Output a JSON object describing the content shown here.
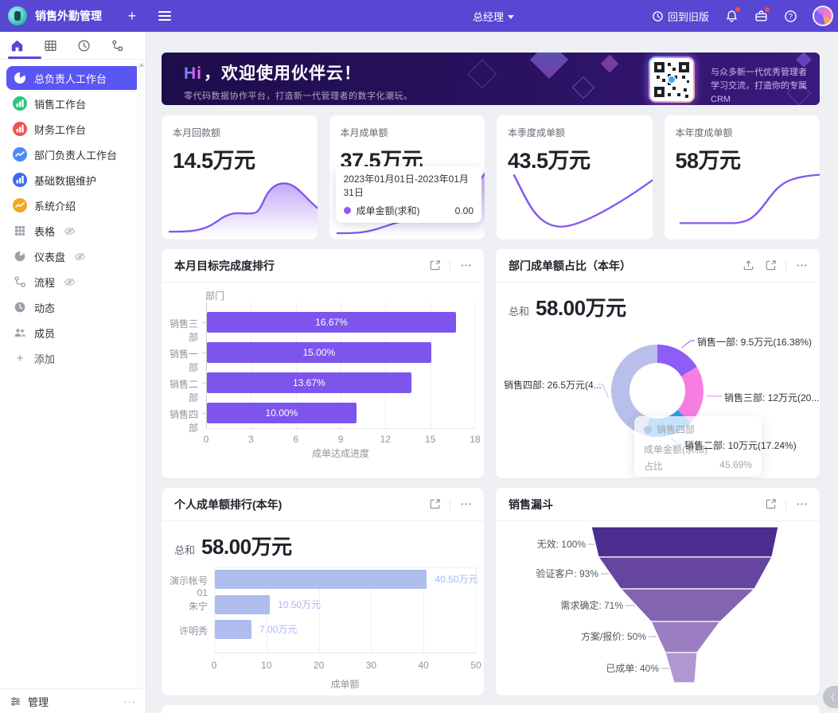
{
  "topbar": {
    "app_title": "销售外勤管理",
    "role_label": "总经理",
    "back_to_old_label": "回到旧版"
  },
  "icons": {
    "more": "···",
    "collapse_chevron": "〈",
    "plus": "+",
    "add_plus": "+"
  },
  "sidebar": {
    "tabs": [
      {
        "name": "home",
        "active": true
      },
      {
        "name": "table",
        "active": false
      },
      {
        "name": "history",
        "active": false
      },
      {
        "name": "workflow",
        "active": false
      }
    ],
    "items": [
      {
        "label": "总负责人工作台",
        "icon": "pie",
        "icon_bg": "",
        "active": true
      },
      {
        "label": "销售工作台",
        "icon": "bars",
        "icon_bg": "#2ec57d",
        "active": false
      },
      {
        "label": "财务工作台",
        "icon": "bars",
        "icon_bg": "#f0544f",
        "active": false
      },
      {
        "label": "部门负责人工作台",
        "icon": "line",
        "icon_bg": "#4e8af4",
        "active": false
      },
      {
        "label": "基础数据维护",
        "icon": "bars",
        "icon_bg": "#3d6bf5",
        "active": false
      },
      {
        "label": "系统介绍",
        "icon": "line",
        "icon_bg": "#f5a623",
        "active": false
      },
      {
        "label": "表格",
        "icon": "grid",
        "icon_bg": null,
        "hidden_eye": true
      },
      {
        "label": "仪表盘",
        "icon": "gauge",
        "icon_bg": null,
        "hidden_eye": true
      },
      {
        "label": "流程",
        "icon": "flow",
        "icon_bg": null,
        "hidden_eye": true
      },
      {
        "label": "动态",
        "icon": "clock",
        "icon_bg": null,
        "hidden_eye": false
      },
      {
        "label": "成员",
        "icon": "people",
        "icon_bg": null,
        "hidden_eye": false
      }
    ],
    "add_label": "添加",
    "manage_label": "管理"
  },
  "banner": {
    "title_highlight": "Hi",
    "title_rest": "，欢迎使用伙伴云！",
    "subtitle": "零代码数据协作平台，打造新一代管理者的数字化潮玩。",
    "qr_caption_line1": "与众多新一代优秀管理者",
    "qr_caption_line2": "学习交流，打造你的专属CRM"
  },
  "stat_cards": [
    {
      "label": "本月回款额",
      "value": "14.5万元"
    },
    {
      "label": "本月成单额",
      "value": "37.5万元",
      "tooltip": {
        "date_range": "2023年01月01日-2023年01月31日",
        "series_label": "成单金额(求和)",
        "series_value": "0.00"
      }
    },
    {
      "label": "本季度成单额",
      "value": "43.5万元"
    },
    {
      "label": "本年度成单额",
      "value": "58万元"
    }
  ],
  "target_chart": {
    "type": "bar",
    "title": "本月目标完成度排行",
    "y_axis_title": "部门",
    "x_axis_label": "成单达成进度",
    "x_ticks": [
      "0",
      "3",
      "6",
      "9",
      "12",
      "15",
      "18"
    ],
    "x_max": 18,
    "bar_color": "#7d55ec",
    "bars": [
      {
        "name": "销售三部",
        "value": 16.67,
        "label": "16.67%"
      },
      {
        "name": "销售一部",
        "value": 15.0,
        "label": "15.00%"
      },
      {
        "name": "销售二部",
        "value": 13.67,
        "label": "13.67%"
      },
      {
        "name": "销售四部",
        "value": 10.0,
        "label": "10.00%"
      }
    ]
  },
  "donut_chart": {
    "type": "pie",
    "title": "部门成单额占比（本年）",
    "total_label": "总和",
    "total_value": "58.00万元",
    "slices": [
      {
        "name": "销售一部",
        "pct": 16.38,
        "color": "#8e5cf6",
        "label": "销售一部: 9.5万元(16.38%)"
      },
      {
        "name": "销售三部",
        "pct": 20.69,
        "color": "#f77ee0",
        "label": "销售三部: 12万元(20..."
      },
      {
        "name": "销售二部",
        "pct": 17.24,
        "color": "#2f9bea",
        "label": "销售二部: 10万元(17.24%)"
      },
      {
        "name": "销售四部",
        "pct": 45.69,
        "color": "#b8bfea",
        "label": "销售四部: 26.5万元(4..."
      }
    ],
    "tooltip": {
      "name": "销售四部",
      "row1_label": "成单金额(求和)",
      "row2_label": "占比",
      "row2_value": "45.69%"
    }
  },
  "personal_chart": {
    "type": "bar",
    "title": "个人成单额排行(本年)",
    "total_label": "总和",
    "total_value": "58.00万元",
    "x_axis_label": "成单额",
    "x_ticks": [
      "0",
      "10",
      "20",
      "30",
      "40",
      "50"
    ],
    "x_max": 50,
    "bar_color": "#aebcee",
    "bars": [
      {
        "name": "演示帐号01",
        "value": 40.5,
        "label": "40.50万元"
      },
      {
        "name": "朱宁",
        "value": 10.5,
        "label": "10.50万元"
      },
      {
        "name": "许明秀",
        "value": 7.0,
        "label": "7.00万元"
      }
    ]
  },
  "funnel_chart": {
    "type": "funnel",
    "title": "销售漏斗",
    "colors": [
      "#4c2d90",
      "#65459f",
      "#8264b1",
      "#9b7ec2",
      "#b096d3"
    ],
    "stages": [
      {
        "label": "无效: 100%"
      },
      {
        "label": "验证客户: 93%"
      },
      {
        "label": "需求确定: 71%"
      },
      {
        "label": "方案/报价: 50%"
      },
      {
        "label": "已成单: 40%"
      }
    ]
  }
}
